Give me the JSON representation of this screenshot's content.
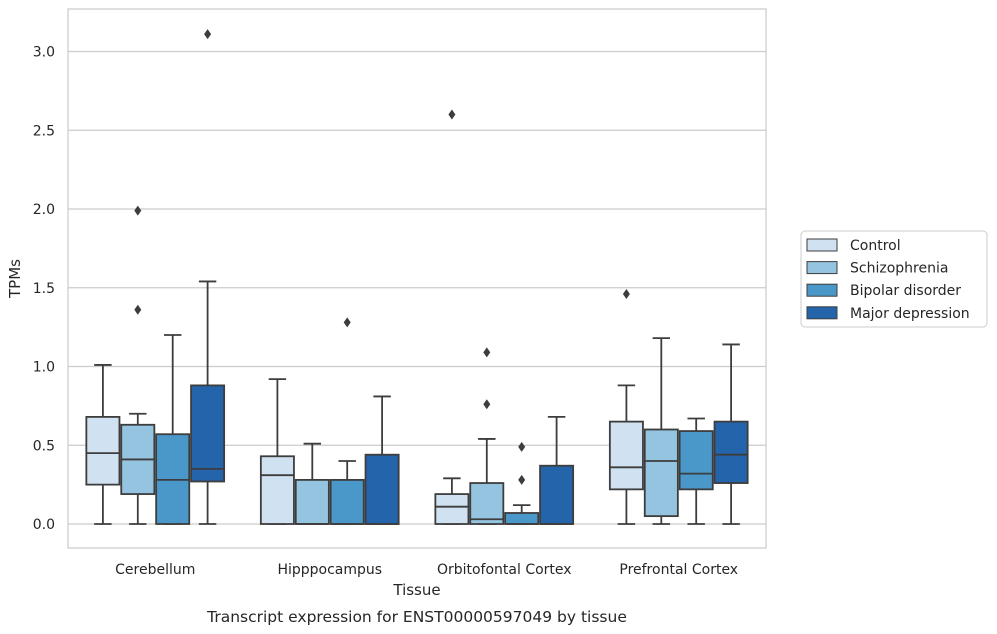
{
  "chart_data": {
    "type": "boxplot",
    "caption": "Transcript expression for ENST00000597049 by tissue",
    "xlabel": "Tissue",
    "ylabel": "TPMs",
    "ylim": [
      -0.15,
      3.25
    ],
    "yticks": [
      "0.0",
      "0.5",
      "1.0",
      "1.5",
      "2.0",
      "2.5",
      "3.0"
    ],
    "grid": true,
    "legend_position": "right-outside",
    "categories": [
      "Cerebellum",
      "Hipppocampus",
      "Orbitofontal Cortex",
      "Prefrontal Cortex"
    ],
    "series": [
      {
        "name": "Control",
        "color": "#d0e1f2",
        "boxes": [
          {
            "min": 0.0,
            "q1": 0.25,
            "median": 0.45,
            "q3": 0.68,
            "max": 1.01,
            "outliers": []
          },
          {
            "min": 0.0,
            "q1": 0.0,
            "median": 0.31,
            "q3": 0.43,
            "max": 0.92,
            "outliers": []
          },
          {
            "min": 0.0,
            "q1": 0.0,
            "median": 0.11,
            "q3": 0.19,
            "max": 0.29,
            "outliers": [
              2.6
            ]
          },
          {
            "min": 0.0,
            "q1": 0.22,
            "median": 0.36,
            "q3": 0.65,
            "max": 0.88,
            "outliers": [
              1.46
            ]
          }
        ]
      },
      {
        "name": "Schizophrenia",
        "color": "#94c4df",
        "boxes": [
          {
            "min": 0.0,
            "q1": 0.19,
            "median": 0.41,
            "q3": 0.63,
            "max": 0.7,
            "outliers": [
              1.36,
              1.99
            ]
          },
          {
            "min": 0.0,
            "q1": 0.0,
            "median": 0.0,
            "q3": 0.28,
            "max": 0.51,
            "outliers": []
          },
          {
            "min": 0.0,
            "q1": 0.0,
            "median": 0.03,
            "q3": 0.26,
            "max": 0.54,
            "outliers": [
              0.76,
              1.09
            ]
          },
          {
            "min": 0.0,
            "q1": 0.05,
            "median": 0.4,
            "q3": 0.6,
            "max": 1.18,
            "outliers": []
          }
        ]
      },
      {
        "name": "Bipolar disorder",
        "color": "#4a98c9",
        "boxes": [
          {
            "min": 0.0,
            "q1": 0.0,
            "median": 0.28,
            "q3": 0.57,
            "max": 1.2,
            "outliers": []
          },
          {
            "min": 0.0,
            "q1": 0.0,
            "median": 0.0,
            "q3": 0.28,
            "max": 0.4,
            "outliers": [
              1.28
            ]
          },
          {
            "min": 0.0,
            "q1": 0.0,
            "median": 0.0,
            "q3": 0.07,
            "max": 0.12,
            "outliers": [
              0.28,
              0.49
            ]
          },
          {
            "min": 0.0,
            "q1": 0.22,
            "median": 0.32,
            "q3": 0.59,
            "max": 0.67,
            "outliers": []
          }
        ]
      },
      {
        "name": "Major depression",
        "color": "#2464ab",
        "boxes": [
          {
            "min": 0.0,
            "q1": 0.27,
            "median": 0.35,
            "q3": 0.88,
            "max": 1.54,
            "outliers": [
              3.11
            ]
          },
          {
            "min": 0.0,
            "q1": 0.0,
            "median": 0.0,
            "q3": 0.44,
            "max": 0.81,
            "outliers": []
          },
          {
            "min": 0.0,
            "q1": 0.0,
            "median": 0.0,
            "q3": 0.37,
            "max": 0.68,
            "outliers": []
          },
          {
            "min": 0.0,
            "q1": 0.26,
            "median": 0.44,
            "q3": 0.65,
            "max": 1.14,
            "outliers": []
          }
        ]
      }
    ]
  }
}
